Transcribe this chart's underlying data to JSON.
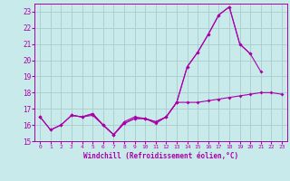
{
  "xlabel": "Windchill (Refroidissement éolien,°C)",
  "x": [
    0,
    1,
    2,
    3,
    4,
    5,
    6,
    7,
    8,
    9,
    10,
    11,
    12,
    13,
    14,
    15,
    16,
    17,
    18,
    19,
    20,
    21,
    22,
    23
  ],
  "line1": [
    16.5,
    15.7,
    16.0,
    16.6,
    16.5,
    16.6,
    16.0,
    15.4,
    16.1,
    16.4,
    16.4,
    16.1,
    16.5,
    17.4,
    17.4,
    17.4,
    17.5,
    17.6,
    17.7,
    17.8,
    17.9,
    18.0,
    18.0,
    17.9
  ],
  "line2": [
    16.5,
    15.7,
    16.0,
    16.6,
    16.5,
    16.7,
    16.0,
    15.4,
    16.1,
    16.4,
    16.4,
    16.2,
    16.5,
    17.4,
    19.6,
    20.5,
    21.6,
    22.8,
    23.3,
    21.0,
    20.4,
    19.3,
    null,
    null
  ],
  "line3": [
    16.5,
    null,
    null,
    16.6,
    16.5,
    16.7,
    16.0,
    15.4,
    16.2,
    16.5,
    16.4,
    16.2,
    16.5,
    17.4,
    19.6,
    20.5,
    21.6,
    22.8,
    23.3,
    21.0,
    20.4,
    null,
    null,
    null
  ],
  "bg_color": "#c8eaea",
  "grid_color": "#aacccc",
  "line_color": "#aa00aa",
  "ylim": [
    15,
    23.5
  ],
  "xlim": [
    -0.5,
    23.5
  ],
  "yticks": [
    15,
    16,
    17,
    18,
    19,
    20,
    21,
    22,
    23
  ],
  "xticks": [
    0,
    1,
    2,
    3,
    4,
    5,
    6,
    7,
    8,
    9,
    10,
    11,
    12,
    13,
    14,
    15,
    16,
    17,
    18,
    19,
    20,
    21,
    22,
    23
  ]
}
